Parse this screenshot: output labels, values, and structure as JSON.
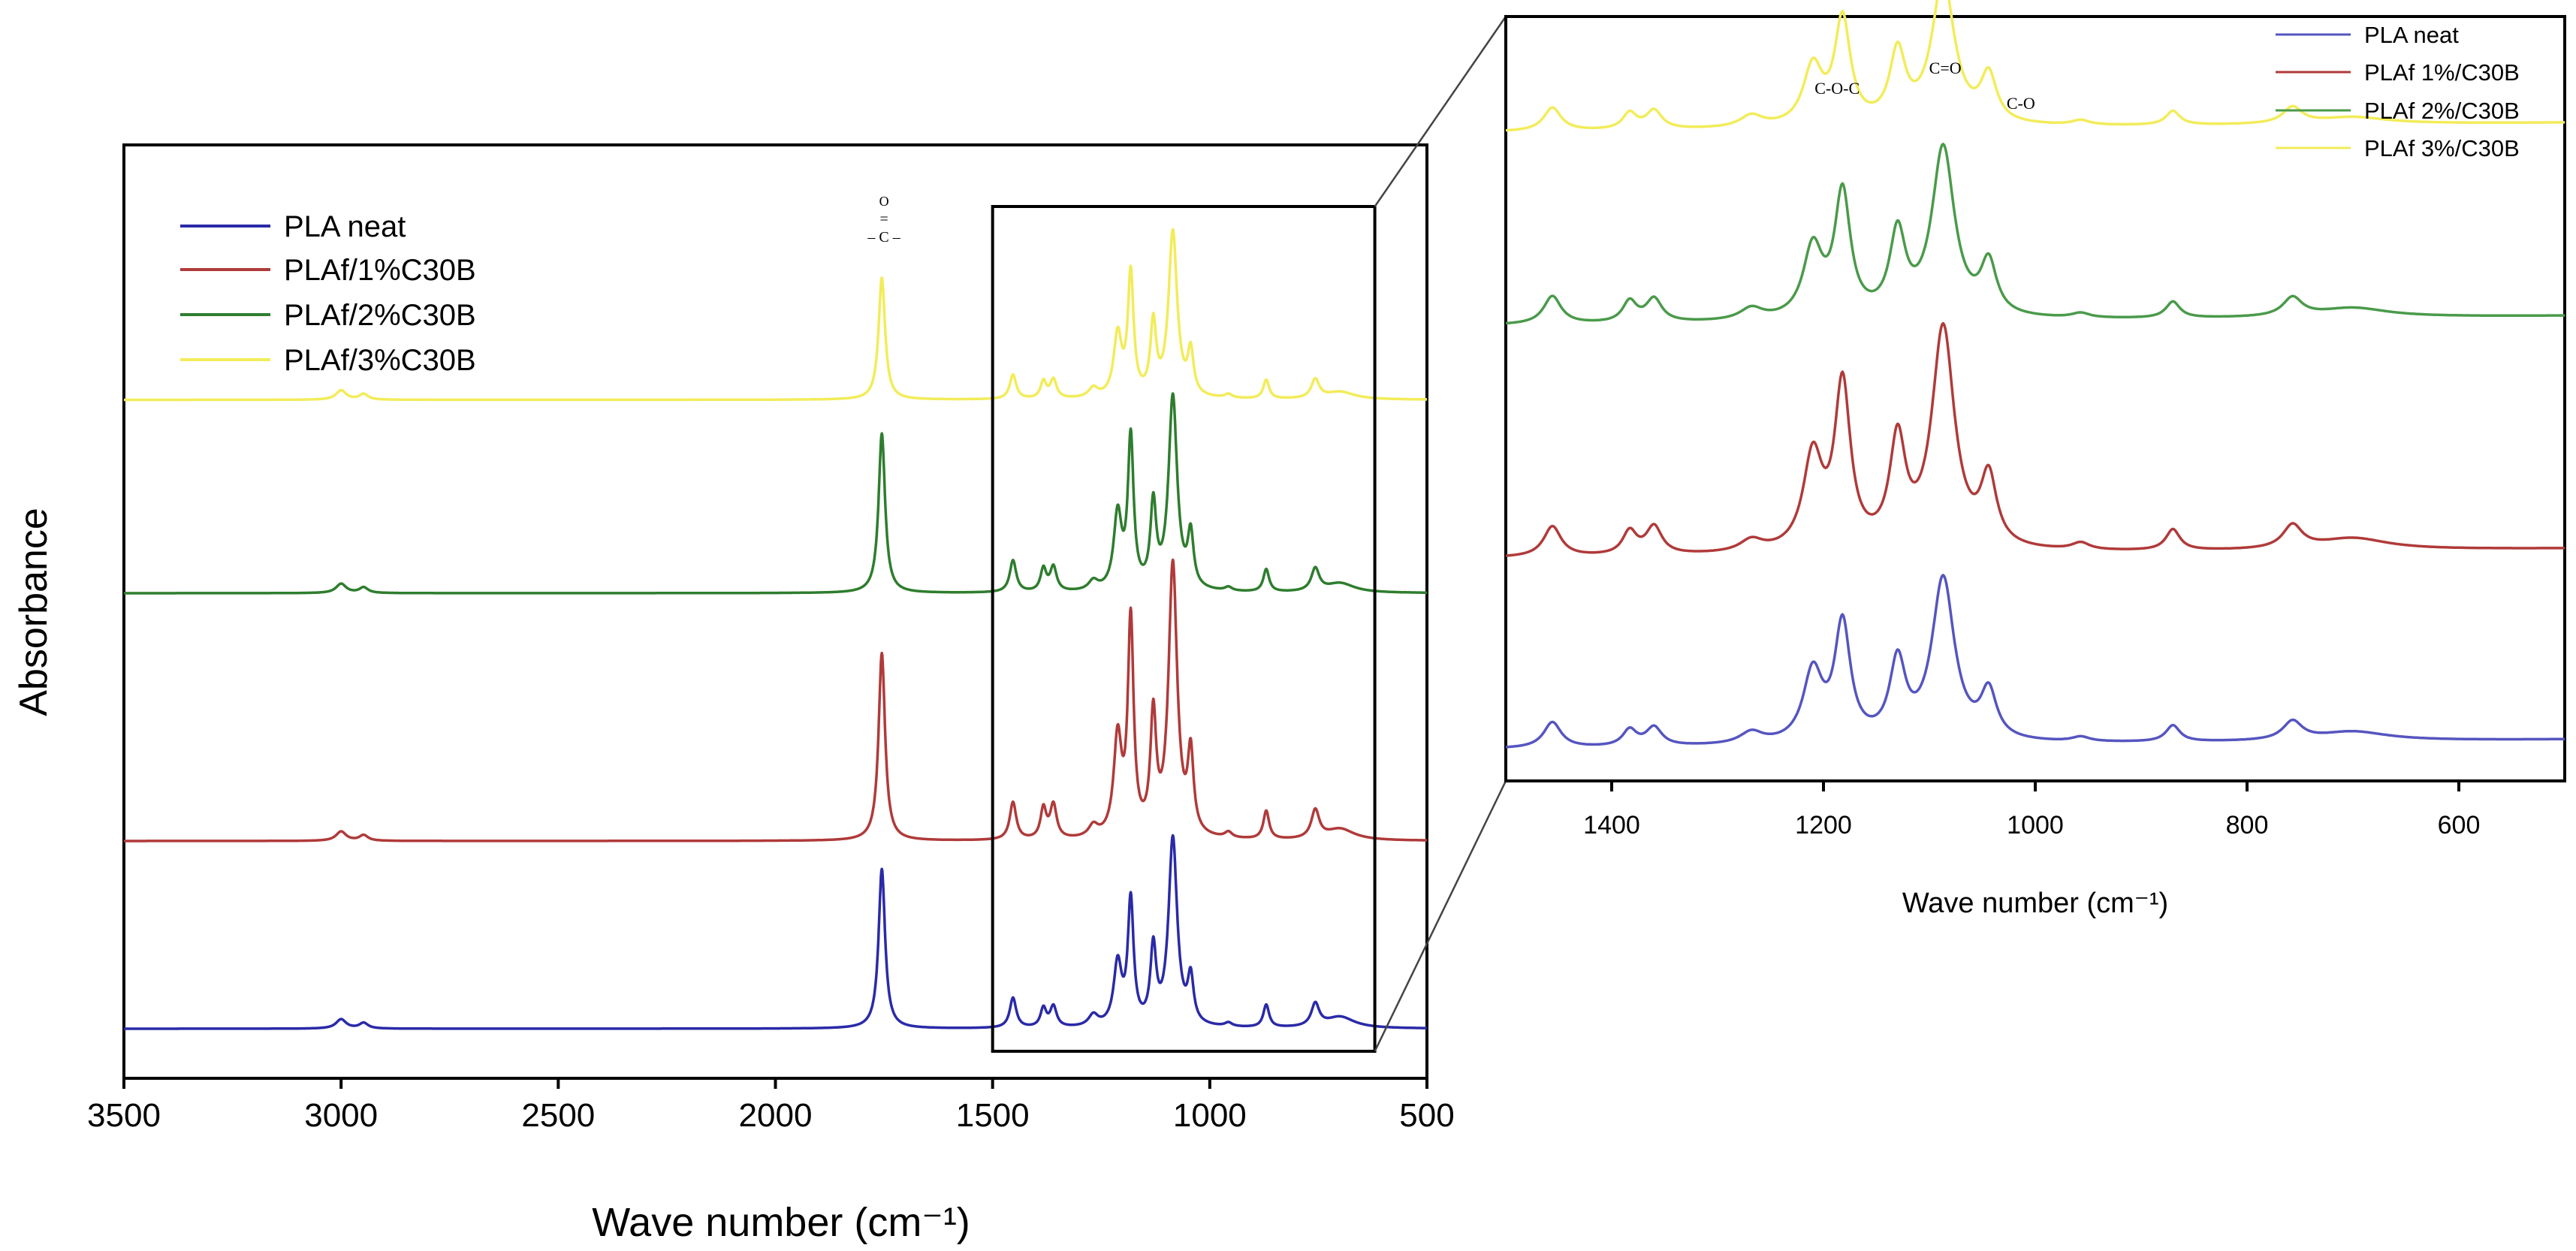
{
  "chart_data": [
    {
      "id": "main",
      "type": "line",
      "title": "",
      "xlabel": "Wave number (cm⁻¹)",
      "ylabel": "Absorbance",
      "xlim": [
        3500,
        500
      ],
      "x_reversed": true,
      "xticks": [
        3500,
        3000,
        2500,
        2000,
        1500,
        1000,
        500
      ],
      "xtick_labels": [
        "3500",
        "3000",
        "2500",
        "2000",
        "1500",
        "1000",
        "500"
      ],
      "legend_position": "top-left",
      "annotations": [
        {
          "label": "carbonyl (C=O) group",
          "at_wavenumber": 1750,
          "parts": [
            "O",
            "=",
            "– C –"
          ]
        }
      ],
      "zoom_region": {
        "x_range": [
          1500,
          620
        ],
        "links_to": "inset"
      },
      "series": [
        {
          "name": "PLA neat",
          "color": "#2a2aa8",
          "baseline_offset": 0.0
        },
        {
          "name": "PLAf/1%C30B",
          "color": "#b03a3a",
          "baseline_offset": 1.0
        },
        {
          "name": "PLAf/2%C30B",
          "color": "#2e7d2e",
          "baseline_offset": 2.32
        },
        {
          "name": "PLAf/3%C30B",
          "color": "#f2ec5a",
          "baseline_offset": 3.35
        }
      ],
      "peaks": [
        {
          "center": 3000,
          "width": 14,
          "heights": [
            0.05,
            0.05,
            0.05,
            0.05
          ]
        },
        {
          "center": 2948,
          "width": 12,
          "heights": [
            0.03,
            0.03,
            0.03,
            0.03
          ]
        },
        {
          "center": 1755,
          "width": 9,
          "heights": [
            0.85,
            1.0,
            0.85,
            0.65
          ]
        },
        {
          "center": 1453,
          "width": 9,
          "heights": [
            0.16,
            0.2,
            0.17,
            0.13
          ]
        },
        {
          "center": 1383,
          "width": 8,
          "heights": [
            0.1,
            0.16,
            0.12,
            0.09
          ]
        },
        {
          "center": 1360,
          "width": 9,
          "heights": [
            0.11,
            0.18,
            0.13,
            0.1
          ]
        },
        {
          "center": 1268,
          "width": 13,
          "heights": [
            0.06,
            0.06,
            0.05,
            0.05
          ]
        },
        {
          "center": 1212,
          "width": 11,
          "heights": [
            0.33,
            0.52,
            0.4,
            0.33
          ]
        },
        {
          "center": 1182,
          "width": 8,
          "heights": [
            0.66,
            1.14,
            0.8,
            0.65
          ]
        },
        {
          "center": 1130,
          "width": 8,
          "heights": [
            0.4,
            0.62,
            0.44,
            0.38
          ]
        },
        {
          "center": 1085,
          "width": 12,
          "heights": [
            1.0,
            1.45,
            1.03,
            0.88
          ]
        },
        {
          "center": 1044,
          "width": 8,
          "heights": [
            0.24,
            0.42,
            0.28,
            0.23
          ]
        },
        {
          "center": 957,
          "width": 10,
          "heights": [
            0.02,
            0.03,
            0.02,
            0.02
          ]
        },
        {
          "center": 870,
          "width": 8,
          "heights": [
            0.12,
            0.15,
            0.12,
            0.1
          ]
        },
        {
          "center": 757,
          "width": 11,
          "heights": [
            0.12,
            0.15,
            0.12,
            0.1
          ]
        },
        {
          "center": 700,
          "width": 40,
          "heights": [
            0.06,
            0.06,
            0.05,
            0.04
          ]
        }
      ]
    },
    {
      "id": "inset",
      "type": "line",
      "title": "",
      "xlabel": "Wave number (cm⁻¹)",
      "ylabel": "",
      "xlim": [
        1500,
        500
      ],
      "x_reversed": true,
      "xticks": [
        1400,
        1200,
        1000,
        800,
        600
      ],
      "xtick_labels": [
        "1400",
        "1200",
        "1000",
        "800",
        "600"
      ],
      "legend_position": "top-right",
      "annotations": [
        {
          "label": "C-O-C",
          "at_wavenumber": 1180
        },
        {
          "label": "C=O",
          "at_wavenumber": 1085
        },
        {
          "label": "C-O",
          "at_wavenumber": 1042
        }
      ],
      "series": [
        {
          "name": "PLA neat",
          "color": "#5555c0",
          "baseline_offset": 0.0
        },
        {
          "name": "PLAf 1%/C30B",
          "color": "#b03a3a",
          "baseline_offset": 0.82
        },
        {
          "name": "PLAf 2%/C30B",
          "color": "#4a9a4a",
          "baseline_offset": 1.82
        },
        {
          "name": "PLAf 3%/C30B",
          "color": "#f2ec5a",
          "baseline_offset": 2.65
        }
      ],
      "peaks": [
        {
          "center": 1456,
          "width": 10,
          "heights": [
            0.11,
            0.13,
            0.12,
            0.1
          ]
        },
        {
          "center": 1383,
          "width": 8,
          "heights": [
            0.07,
            0.1,
            0.09,
            0.07
          ]
        },
        {
          "center": 1360,
          "width": 9,
          "heights": [
            0.08,
            0.12,
            0.1,
            0.08
          ]
        },
        {
          "center": 1268,
          "width": 13,
          "heights": [
            0.05,
            0.05,
            0.05,
            0.05
          ]
        },
        {
          "center": 1210,
          "width": 11,
          "heights": [
            0.3,
            0.4,
            0.3,
            0.25
          ]
        },
        {
          "center": 1182,
          "width": 9,
          "heights": [
            0.5,
            0.7,
            0.53,
            0.45
          ]
        },
        {
          "center": 1130,
          "width": 9,
          "heights": [
            0.33,
            0.45,
            0.35,
            0.3
          ]
        },
        {
          "center": 1087,
          "width": 13,
          "heights": [
            0.7,
            0.95,
            0.73,
            0.62
          ]
        },
        {
          "center": 1044,
          "width": 9,
          "heights": [
            0.2,
            0.29,
            0.22,
            0.2
          ]
        },
        {
          "center": 957,
          "width": 10,
          "heights": [
            0.02,
            0.03,
            0.02,
            0.02
          ]
        },
        {
          "center": 870,
          "width": 8,
          "heights": [
            0.07,
            0.09,
            0.07,
            0.06
          ]
        },
        {
          "center": 757,
          "width": 11,
          "heights": [
            0.08,
            0.1,
            0.08,
            0.07
          ]
        },
        {
          "center": 700,
          "width": 40,
          "heights": [
            0.04,
            0.05,
            0.04,
            0.03
          ]
        }
      ]
    }
  ]
}
